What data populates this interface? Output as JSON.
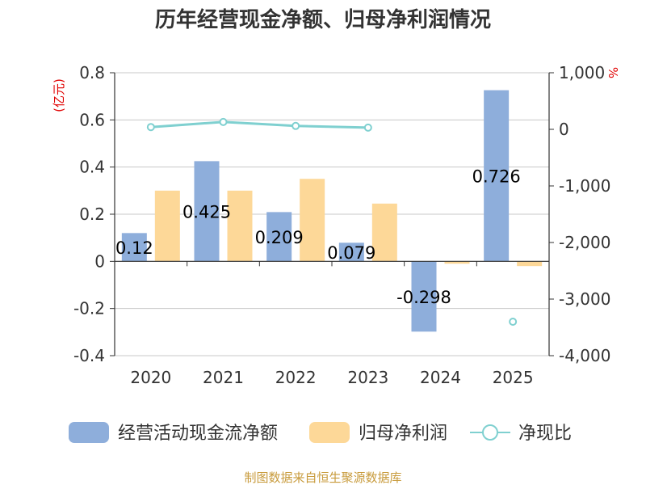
{
  "title": "历年经营现金净额、归母净利润情况",
  "source": "制图数据来自恒生聚源数据库",
  "colors": {
    "cash_flow": "#8eaedb",
    "net_profit": "#fdd898",
    "ratio_line": "#7fd0d0",
    "grid": "#c8c8c8",
    "axis": "#333333"
  },
  "chart_data": {
    "type": "bar",
    "title": "历年经营现金净额、归母净利润情况",
    "categories": [
      "2020",
      "2021",
      "2022",
      "2023",
      "2024",
      "2025"
    ],
    "y_left": {
      "unit": "(亿元)",
      "ylim": [
        -0.4,
        0.8
      ],
      "ticks": [
        "0.8",
        "0.6",
        "0.4",
        "0.2",
        "0",
        "-0.2",
        "-0.4"
      ]
    },
    "y_right": {
      "unit": "%",
      "ylim": [
        -4000,
        1000
      ],
      "ticks": [
        "1,000",
        "0",
        "-1,000",
        "-2,000",
        "-3,000",
        "-4,000"
      ]
    },
    "series": [
      {
        "name": "经营活动现金流净额",
        "type": "bar",
        "axis": "left",
        "values": [
          0.12,
          0.425,
          0.209,
          0.079,
          -0.298,
          0.726
        ],
        "labels": [
          "0.12",
          "0.425",
          "0.209",
          "0.079",
          "-0.298",
          "0.726"
        ]
      },
      {
        "name": "归母净利润",
        "type": "bar",
        "axis": "left",
        "values": [
          0.3,
          0.3,
          0.35,
          0.245,
          -0.01,
          -0.02
        ]
      },
      {
        "name": "净现比",
        "type": "line",
        "axis": "right",
        "values": [
          40,
          130,
          60,
          30,
          null,
          -3400
        ]
      }
    ],
    "grid": true,
    "legend": "bottom"
  }
}
